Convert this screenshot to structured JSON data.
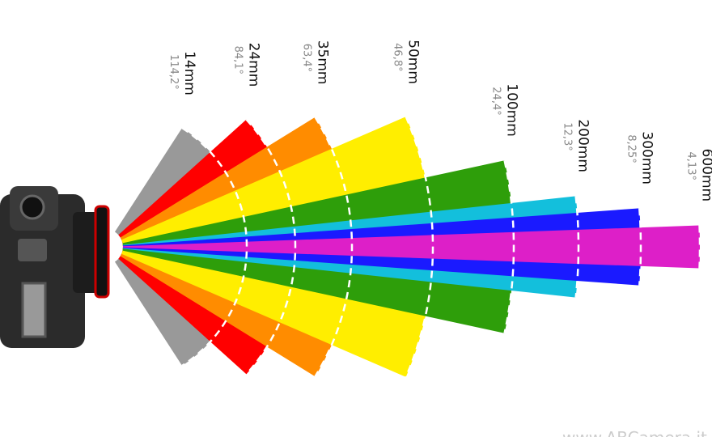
{
  "lenses": [
    {
      "focal": "14mm",
      "angle": 114.2,
      "angle_label": "114,2°",
      "color": "#999999"
    },
    {
      "focal": "24mm",
      "angle": 84.1,
      "angle_label": "84,1°",
      "color": "#ff0000"
    },
    {
      "focal": "35mm",
      "angle": 63.4,
      "angle_label": "63,4°",
      "color": "#ff8c00"
    },
    {
      "focal": "50mm",
      "angle": 46.8,
      "angle_label": "46,8°",
      "color": "#ffee00"
    },
    {
      "focal": "100mm",
      "angle": 24.4,
      "angle_label": "24,4°",
      "color": "#2e9e0a"
    },
    {
      "focal": "200mm",
      "angle": 12.3,
      "angle_label": "12,3°",
      "color": "#13bfdc"
    },
    {
      "focal": "300mm",
      "angle": 8.25,
      "angle_label": "8,25°",
      "color": "#1a1aff"
    },
    {
      "focal": "600mm",
      "angle": 4.13,
      "angle_label": "4,13°",
      "color": "#dd1fc8"
    }
  ],
  "watermark": "www.ABCamera.it"
}
